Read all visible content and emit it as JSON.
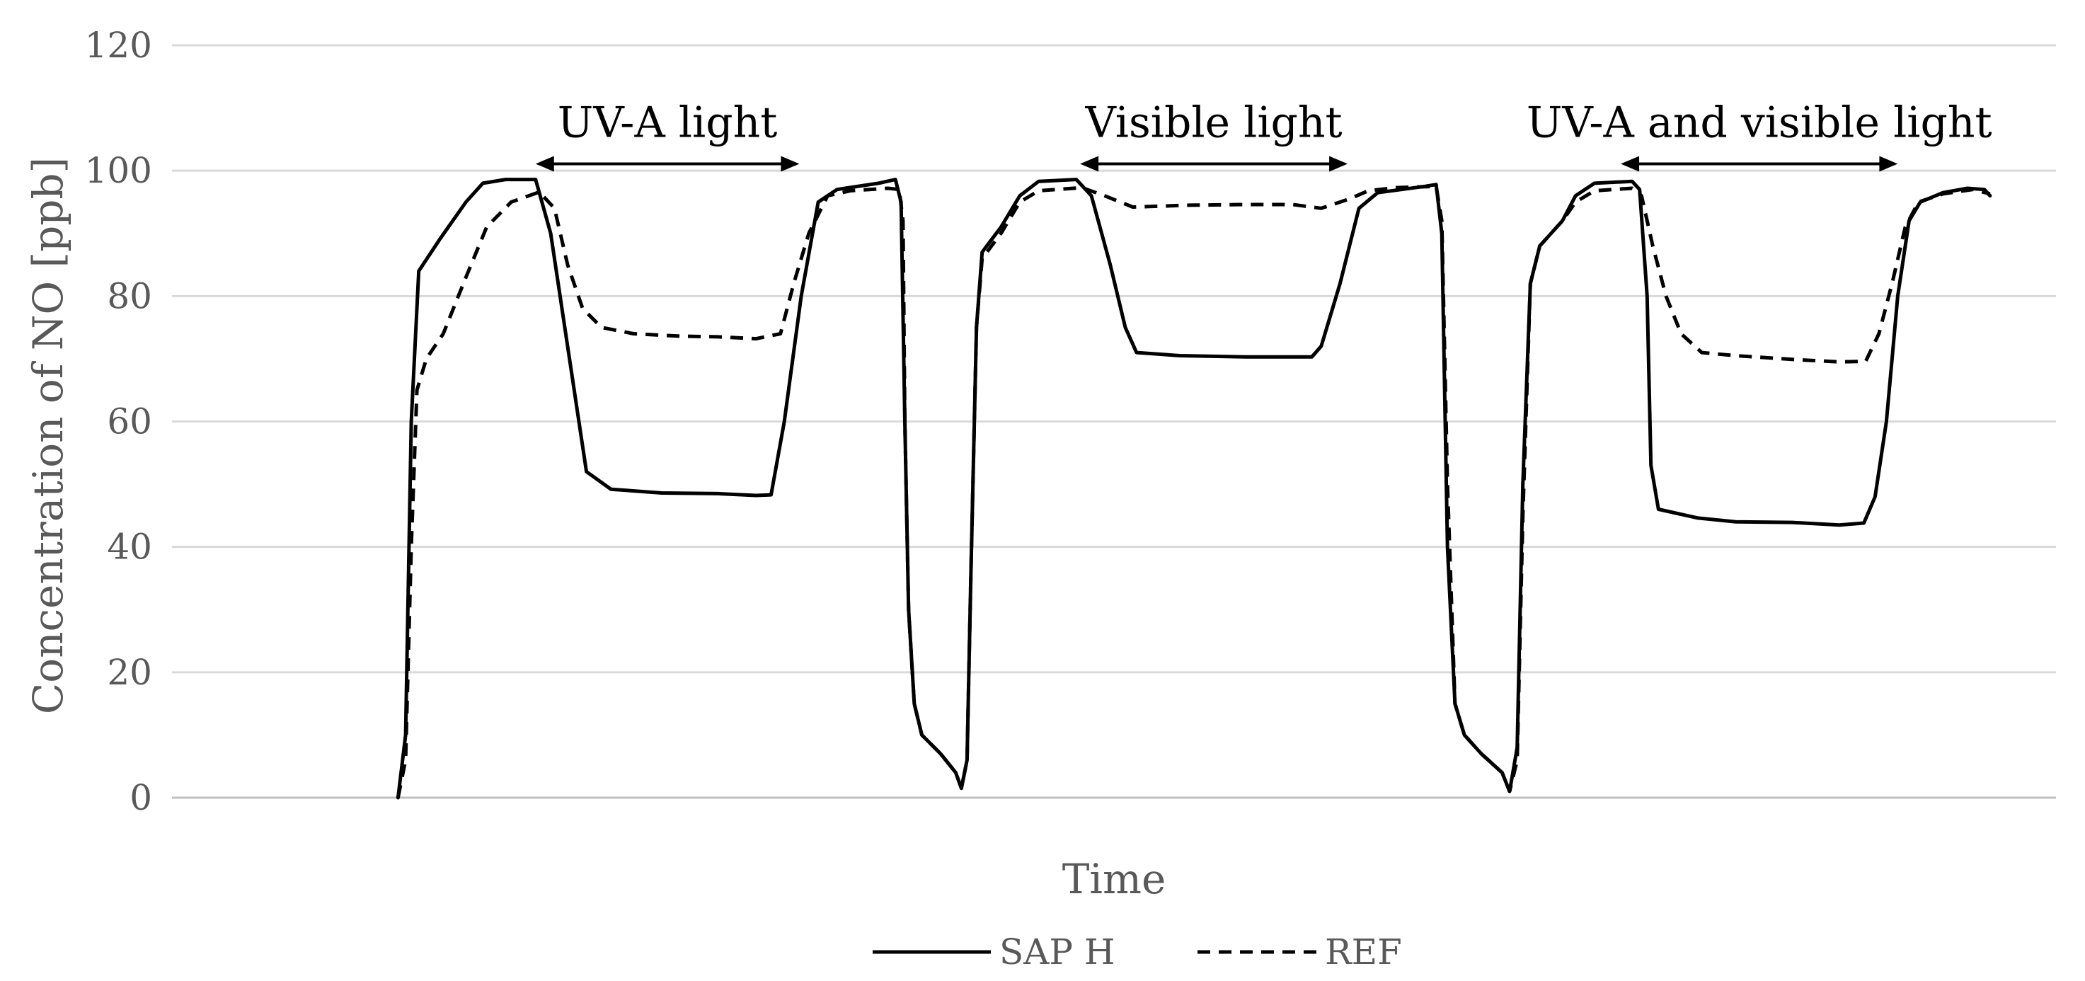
{
  "chart_data": {
    "type": "line",
    "title": "",
    "xlabel": "Time",
    "ylabel": "Concentration of NO [ppb]",
    "xlim": [
      0,
      100
    ],
    "ylim": [
      0,
      120
    ],
    "yticks": [
      0,
      20,
      40,
      60,
      80,
      100,
      120
    ],
    "grid": true,
    "legend_position": "bottom",
    "annotations": [
      {
        "text": "UV-A light",
        "x_start": 19.3,
        "x_end": 33.3,
        "y": 102
      },
      {
        "text": "Visible light",
        "x_start": 48.2,
        "x_end": 62.4,
        "y": 102
      },
      {
        "text": "UV-A and visible light",
        "x_start": 76.9,
        "x_end": 91.6,
        "y": 102
      }
    ],
    "series": [
      {
        "name": "SAP H",
        "style": "solid",
        "color": "#000000",
        "points": [
          [
            12.0,
            0
          ],
          [
            12.4,
            10
          ],
          [
            12.7,
            60
          ],
          [
            13.1,
            84
          ],
          [
            14.2,
            89
          ],
          [
            15.6,
            95
          ],
          [
            16.5,
            98
          ],
          [
            17.7,
            98.6
          ],
          [
            19.3,
            98.6
          ],
          [
            20.1,
            90
          ],
          [
            21.0,
            72
          ],
          [
            22.0,
            52
          ],
          [
            23.3,
            49.2
          ],
          [
            26.0,
            48.6
          ],
          [
            29.0,
            48.5
          ],
          [
            31.0,
            48.2
          ],
          [
            31.8,
            48.3
          ],
          [
            32.5,
            60
          ],
          [
            33.4,
            80
          ],
          [
            34.3,
            95
          ],
          [
            35.3,
            97
          ],
          [
            37.5,
            98
          ],
          [
            38.4,
            98.6
          ],
          [
            38.7,
            95
          ],
          [
            38.9,
            60
          ],
          [
            39.1,
            30
          ],
          [
            39.4,
            15
          ],
          [
            39.8,
            10
          ],
          [
            40.8,
            7
          ],
          [
            41.6,
            4
          ],
          [
            41.9,
            1.5
          ],
          [
            42.2,
            6
          ],
          [
            42.4,
            35
          ],
          [
            42.7,
            75
          ],
          [
            43.0,
            87
          ],
          [
            44.0,
            91
          ],
          [
            45.0,
            96
          ],
          [
            46.0,
            98.3
          ],
          [
            48.0,
            98.6
          ],
          [
            48.8,
            96
          ],
          [
            49.8,
            85
          ],
          [
            50.6,
            75
          ],
          [
            51.2,
            71
          ],
          [
            53.5,
            70.5
          ],
          [
            57.0,
            70.3
          ],
          [
            60.5,
            70.3
          ],
          [
            61.0,
            72
          ],
          [
            62.0,
            82
          ],
          [
            63.0,
            94
          ],
          [
            64.0,
            96.5
          ],
          [
            66.5,
            97.5
          ],
          [
            67.1,
            97.8
          ],
          [
            67.4,
            90
          ],
          [
            67.7,
            40
          ],
          [
            68.1,
            15
          ],
          [
            68.6,
            10
          ],
          [
            69.5,
            7
          ],
          [
            70.6,
            4
          ],
          [
            71.0,
            1
          ],
          [
            71.4,
            8
          ],
          [
            71.7,
            50
          ],
          [
            72.1,
            82
          ],
          [
            72.6,
            88
          ],
          [
            73.8,
            92
          ],
          [
            74.5,
            96
          ],
          [
            75.5,
            98
          ],
          [
            77.5,
            98.3
          ],
          [
            77.9,
            97
          ],
          [
            78.3,
            80
          ],
          [
            78.5,
            53
          ],
          [
            78.9,
            46
          ],
          [
            81.0,
            44.6
          ],
          [
            83.0,
            44
          ],
          [
            86.0,
            43.9
          ],
          [
            88.5,
            43.5
          ],
          [
            89.8,
            43.8
          ],
          [
            90.4,
            48
          ],
          [
            91.0,
            60
          ],
          [
            91.6,
            80
          ],
          [
            92.2,
            92
          ],
          [
            92.8,
            95
          ],
          [
            94.0,
            96.5
          ],
          [
            95.3,
            97.2
          ],
          [
            96.2,
            97
          ],
          [
            96.5,
            96
          ]
        ]
      },
      {
        "name": "REF",
        "style": "dashed",
        "color": "#000000",
        "points": [
          [
            12.0,
            0
          ],
          [
            12.4,
            6
          ],
          [
            12.7,
            40
          ],
          [
            13.0,
            65
          ],
          [
            13.5,
            70
          ],
          [
            14.4,
            74
          ],
          [
            15.6,
            83
          ],
          [
            16.7,
            91
          ],
          [
            18.0,
            95
          ],
          [
            19.5,
            96.6
          ],
          [
            20.3,
            94
          ],
          [
            21.0,
            85
          ],
          [
            21.8,
            78
          ],
          [
            22.8,
            75
          ],
          [
            24.5,
            74
          ],
          [
            27.0,
            73.6
          ],
          [
            29.0,
            73.5
          ],
          [
            31.0,
            73.2
          ],
          [
            32.3,
            74
          ],
          [
            33.0,
            82
          ],
          [
            33.8,
            90
          ],
          [
            34.8,
            96
          ],
          [
            36.0,
            96.8
          ],
          [
            38.0,
            97.2
          ],
          [
            38.6,
            97
          ],
          [
            38.8,
            92
          ],
          [
            38.9,
            60
          ],
          [
            39.1,
            30
          ],
          [
            39.4,
            15
          ],
          [
            39.8,
            10
          ],
          [
            40.8,
            7
          ],
          [
            41.6,
            4
          ],
          [
            41.9,
            1.5
          ],
          [
            42.2,
            6
          ],
          [
            42.4,
            35
          ],
          [
            42.7,
            75
          ],
          [
            43.0,
            86
          ],
          [
            44.0,
            90
          ],
          [
            45.0,
            95
          ],
          [
            46.0,
            96.8
          ],
          [
            48.3,
            97.3
          ],
          [
            49.5,
            96
          ],
          [
            51.0,
            94.2
          ],
          [
            54.0,
            94.5
          ],
          [
            57.0,
            94.6
          ],
          [
            59.5,
            94.6
          ],
          [
            61.0,
            94
          ],
          [
            62.5,
            95.5
          ],
          [
            63.5,
            96.8
          ],
          [
            65.0,
            97.3
          ],
          [
            67.1,
            97.5
          ],
          [
            67.4,
            92
          ],
          [
            67.7,
            50
          ],
          [
            68.1,
            15
          ],
          [
            68.6,
            10
          ],
          [
            69.5,
            7
          ],
          [
            70.6,
            4
          ],
          [
            71.0,
            1
          ],
          [
            71.4,
            6
          ],
          [
            71.7,
            45
          ],
          [
            72.1,
            82
          ],
          [
            72.6,
            88
          ],
          [
            73.8,
            92
          ],
          [
            74.5,
            95
          ],
          [
            75.5,
            96.8
          ],
          [
            77.5,
            97.2
          ],
          [
            78.0,
            96
          ],
          [
            78.6,
            88
          ],
          [
            79.3,
            80
          ],
          [
            80.1,
            74
          ],
          [
            81.2,
            71
          ],
          [
            83.0,
            70.5
          ],
          [
            86.0,
            69.9
          ],
          [
            88.5,
            69.5
          ],
          [
            89.9,
            69.6
          ],
          [
            90.6,
            74
          ],
          [
            91.3,
            82
          ],
          [
            92.0,
            91
          ],
          [
            92.7,
            95
          ],
          [
            94.0,
            96.3
          ],
          [
            95.6,
            97
          ],
          [
            96.5,
            96.3
          ]
        ]
      }
    ]
  }
}
